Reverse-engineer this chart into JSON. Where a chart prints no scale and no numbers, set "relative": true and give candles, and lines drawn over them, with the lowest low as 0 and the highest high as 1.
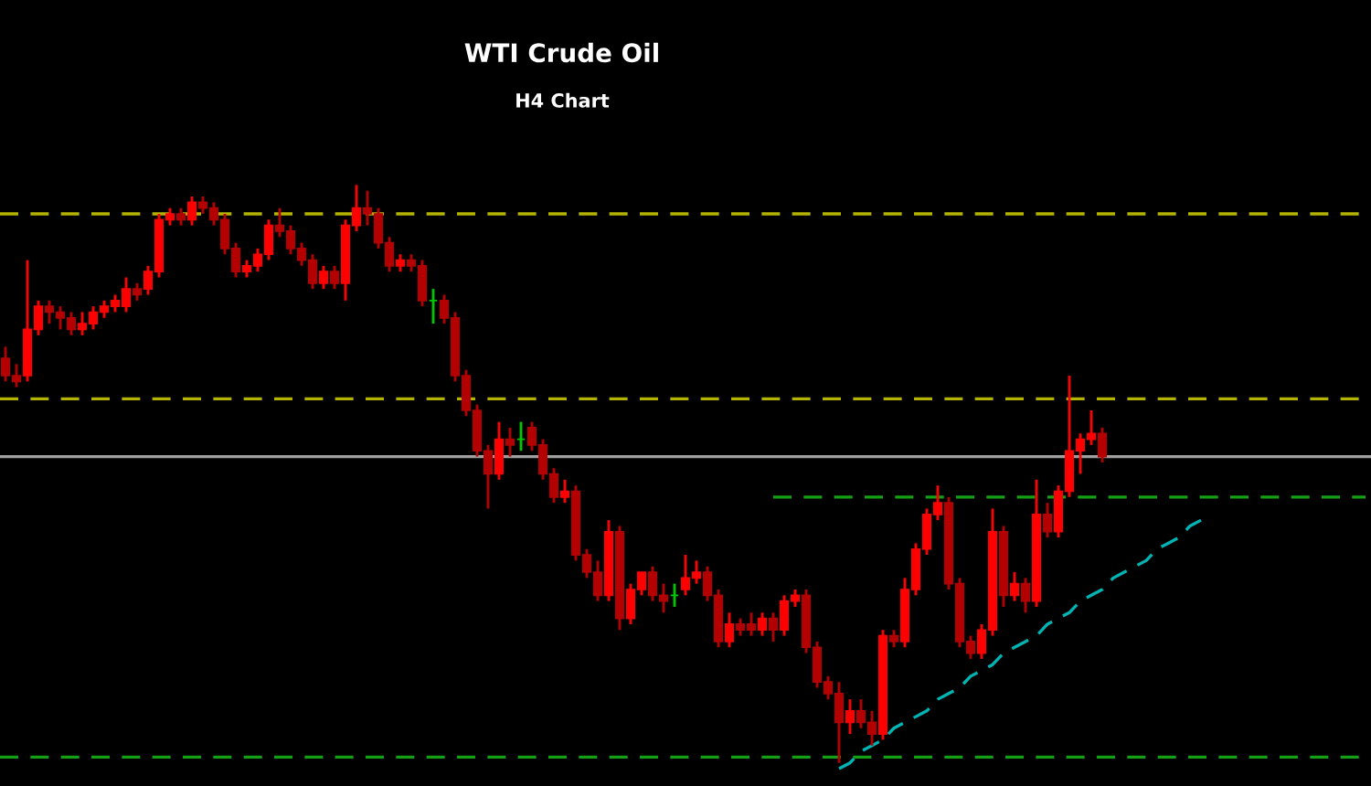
{
  "chart_data": {
    "type": "candlestick",
    "title": "WTI Crude Oil",
    "subtitle": "H4 Chart",
    "relative": true,
    "categories": [
      null,
      null,
      null,
      null,
      null,
      null,
      null,
      null,
      null,
      null,
      null,
      null,
      null,
      null,
      null,
      null,
      null,
      null,
      null,
      null,
      null,
      null,
      null,
      null,
      null,
      null,
      null,
      null,
      null,
      null,
      null,
      null,
      null,
      null,
      null,
      null,
      null,
      null,
      null,
      null,
      null,
      null,
      null,
      null,
      null,
      null,
      null,
      null,
      null,
      null,
      null,
      null,
      null,
      null,
      null,
      null,
      null,
      null,
      null,
      null,
      null,
      null,
      null,
      null,
      null,
      null,
      null,
      null,
      null,
      null,
      null,
      null,
      null,
      null,
      null,
      null,
      null,
      null,
      null,
      null,
      null,
      null,
      null,
      null,
      null,
      null,
      null,
      null,
      null,
      null,
      null,
      null,
      null,
      null,
      null,
      null,
      null,
      null,
      null,
      null,
      null,
      null,
      null,
      null,
      null,
      null,
      null,
      null,
      null,
      null,
      null,
      null,
      null,
      null,
      null,
      null,
      null,
      null,
      null,
      null,
      null,
      null,
      null,
      null,
      null
    ],
    "ohlc": [
      [
        0.7,
        0.72,
        0.66,
        0.67
      ],
      [
        0.67,
        0.69,
        0.65,
        0.66
      ],
      [
        0.67,
        0.87,
        0.66,
        0.75
      ],
      [
        0.75,
        0.8,
        0.74,
        0.79
      ],
      [
        0.79,
        0.8,
        0.76,
        0.78
      ],
      [
        0.78,
        0.79,
        0.75,
        0.77
      ],
      [
        0.77,
        0.78,
        0.74,
        0.75
      ],
      [
        0.75,
        0.78,
        0.74,
        0.76
      ],
      [
        0.76,
        0.79,
        0.75,
        0.78
      ],
      [
        0.78,
        0.8,
        0.77,
        0.79
      ],
      [
        0.79,
        0.81,
        0.78,
        0.8
      ],
      [
        0.79,
        0.84,
        0.78,
        0.82
      ],
      [
        0.82,
        0.83,
        0.8,
        0.81
      ],
      [
        0.82,
        0.86,
        0.81,
        0.85
      ],
      [
        0.85,
        0.95,
        0.84,
        0.94
      ],
      [
        0.94,
        0.96,
        0.93,
        0.95
      ],
      [
        0.95,
        0.96,
        0.93,
        0.94
      ],
      [
        0.94,
        0.98,
        0.93,
        0.97
      ],
      [
        0.97,
        0.98,
        0.95,
        0.96
      ],
      [
        0.96,
        0.97,
        0.93,
        0.94
      ],
      [
        0.94,
        0.95,
        0.88,
        0.89
      ],
      [
        0.89,
        0.9,
        0.84,
        0.85
      ],
      [
        0.85,
        0.87,
        0.84,
        0.86
      ],
      [
        0.86,
        0.89,
        0.85,
        0.88
      ],
      [
        0.88,
        0.94,
        0.87,
        0.93
      ],
      [
        0.93,
        0.96,
        0.91,
        0.92
      ],
      [
        0.92,
        0.93,
        0.88,
        0.89
      ],
      [
        0.89,
        0.9,
        0.86,
        0.87
      ],
      [
        0.87,
        0.88,
        0.82,
        0.83
      ],
      [
        0.83,
        0.86,
        0.82,
        0.85
      ],
      [
        0.85,
        0.86,
        0.82,
        0.83
      ],
      [
        0.83,
        0.94,
        0.8,
        0.93
      ],
      [
        0.93,
        1.0,
        0.92,
        0.96
      ],
      [
        0.96,
        0.99,
        0.93,
        0.95
      ],
      [
        0.95,
        0.96,
        0.89,
        0.9
      ],
      [
        0.9,
        0.91,
        0.85,
        0.86
      ],
      [
        0.86,
        0.88,
        0.85,
        0.87
      ],
      [
        0.87,
        0.88,
        0.85,
        0.86
      ],
      [
        0.86,
        0.87,
        0.79,
        0.8
      ],
      [
        0.8,
        0.82,
        0.76,
        0.8
      ],
      [
        0.8,
        0.81,
        0.76,
        0.77
      ],
      [
        0.77,
        0.78,
        0.66,
        0.67
      ],
      [
        0.67,
        0.68,
        0.6,
        0.61
      ],
      [
        0.61,
        0.62,
        0.53,
        0.54
      ],
      [
        0.54,
        0.55,
        0.44,
        0.5
      ],
      [
        0.5,
        0.59,
        0.49,
        0.56
      ],
      [
        0.56,
        0.58,
        0.53,
        0.55
      ],
      [
        0.56,
        0.59,
        0.54,
        0.56
      ],
      [
        0.58,
        0.59,
        0.54,
        0.55
      ],
      [
        0.55,
        0.56,
        0.49,
        0.5
      ],
      [
        0.5,
        0.51,
        0.45,
        0.46
      ],
      [
        0.46,
        0.49,
        0.45,
        0.47
      ],
      [
        0.47,
        0.48,
        0.35,
        0.36
      ],
      [
        0.36,
        0.37,
        0.32,
        0.33
      ],
      [
        0.33,
        0.35,
        0.28,
        0.29
      ],
      [
        0.29,
        0.42,
        0.28,
        0.4
      ],
      [
        0.4,
        0.41,
        0.23,
        0.25
      ],
      [
        0.25,
        0.31,
        0.24,
        0.3
      ],
      [
        0.3,
        0.33,
        0.29,
        0.33
      ],
      [
        0.33,
        0.34,
        0.28,
        0.29
      ],
      [
        0.29,
        0.31,
        0.26,
        0.28
      ],
      [
        0.29,
        0.31,
        0.27,
        0.29
      ],
      [
        0.3,
        0.36,
        0.29,
        0.32
      ],
      [
        0.32,
        0.35,
        0.31,
        0.33
      ],
      [
        0.33,
        0.34,
        0.28,
        0.29
      ],
      [
        0.29,
        0.3,
        0.2,
        0.21
      ],
      [
        0.21,
        0.26,
        0.2,
        0.24
      ],
      [
        0.24,
        0.25,
        0.22,
        0.23
      ],
      [
        0.24,
        0.26,
        0.22,
        0.23
      ],
      [
        0.23,
        0.26,
        0.22,
        0.25
      ],
      [
        0.25,
        0.26,
        0.21,
        0.23
      ],
      [
        0.23,
        0.29,
        0.22,
        0.28
      ],
      [
        0.28,
        0.3,
        0.27,
        0.29
      ],
      [
        0.29,
        0.3,
        0.19,
        0.2
      ],
      [
        0.2,
        0.21,
        0.13,
        0.14
      ],
      [
        0.14,
        0.15,
        0.11,
        0.12
      ],
      [
        0.12,
        0.14,
        0.0,
        0.07
      ],
      [
        0.07,
        0.11,
        0.05,
        0.09
      ],
      [
        0.09,
        0.11,
        0.06,
        0.07
      ],
      [
        0.07,
        0.09,
        0.03,
        0.05
      ],
      [
        0.05,
        0.23,
        0.04,
        0.22
      ],
      [
        0.22,
        0.23,
        0.2,
        0.21
      ],
      [
        0.21,
        0.32,
        0.2,
        0.3
      ],
      [
        0.3,
        0.38,
        0.29,
        0.37
      ],
      [
        0.37,
        0.44,
        0.36,
        0.43
      ],
      [
        0.43,
        0.48,
        0.42,
        0.45
      ],
      [
        0.45,
        0.46,
        0.3,
        0.31
      ],
      [
        0.31,
        0.32,
        0.2,
        0.21
      ],
      [
        0.21,
        0.22,
        0.18,
        0.19
      ],
      [
        0.19,
        0.24,
        0.18,
        0.23
      ],
      [
        0.23,
        0.44,
        0.22,
        0.4
      ],
      [
        0.4,
        0.41,
        0.27,
        0.29
      ],
      [
        0.29,
        0.33,
        0.28,
        0.31
      ],
      [
        0.31,
        0.32,
        0.26,
        0.28
      ],
      [
        0.28,
        0.49,
        0.27,
        0.43
      ],
      [
        0.43,
        0.45,
        0.39,
        0.4
      ],
      [
        0.4,
        0.48,
        0.39,
        0.47
      ],
      [
        0.47,
        0.67,
        0.46,
        0.54
      ],
      [
        0.54,
        0.57,
        0.5,
        0.56
      ],
      [
        0.56,
        0.61,
        0.55,
        0.57
      ],
      [
        0.57,
        0.58,
        0.52,
        0.53
      ],
      null,
      null,
      null,
      null,
      null,
      null,
      null,
      null,
      null,
      null,
      null,
      null,
      null,
      null,
      null,
      null,
      null,
      null,
      null,
      null,
      null,
      null,
      null,
      null
    ],
    "colors": [
      "#b40000",
      "#b40000",
      "#ff0000",
      "#ff0000",
      "#b40000",
      "#b40000",
      "#b40000",
      "#ff0000",
      "#ff0000",
      "#ff0000",
      "#ff0000",
      "#ff0000",
      "#b40000",
      "#ff0000",
      "#ff0000",
      "#ff0000",
      "#b40000",
      "#ff0000",
      "#b40000",
      "#b40000",
      "#b40000",
      "#b40000",
      "#ff0000",
      "#ff0000",
      "#ff0000",
      "#b40000",
      "#b40000",
      "#b40000",
      "#b40000",
      "#ff0000",
      "#b40000",
      "#ff0000",
      "#ff0000",
      "#b40000",
      "#b40000",
      "#b40000",
      "#ff0000",
      "#b40000",
      "#b40000",
      "#00c800",
      "#b40000",
      "#b40000",
      "#b40000",
      "#b40000",
      "#b40000",
      "#ff0000",
      "#b40000",
      "#00c800",
      "#b40000",
      "#b40000",
      "#b40000",
      "#ff0000",
      "#b40000",
      "#b40000",
      "#b40000",
      "#ff0000",
      "#b40000",
      "#ff0000",
      "#ff0000",
      "#b40000",
      "#b40000",
      "#00c800",
      "#ff0000",
      "#ff0000",
      "#b40000",
      "#b40000",
      "#ff0000",
      "#b40000",
      "#b40000",
      "#ff0000",
      "#b40000",
      "#ff0000",
      "#ff0000",
      "#b40000",
      "#b40000",
      "#b40000",
      "#b40000",
      "#ff0000",
      "#b40000",
      "#b40000",
      "#ff0000",
      "#b40000",
      "#ff0000",
      "#ff0000",
      "#ff0000",
      "#ff0000",
      "#b40000",
      "#b40000",
      "#b40000",
      "#ff0000",
      "#ff0000",
      "#b40000",
      "#ff0000",
      "#b40000",
      "#ff0000",
      "#b40000",
      "#ff0000",
      "#ff0000",
      "#ff0000",
      "#ff0000",
      "#b40000",
      null,
      null,
      null,
      null,
      null,
      null,
      null,
      null,
      null,
      null,
      null,
      null,
      null,
      null,
      null,
      null,
      null,
      null,
      null,
      null,
      null,
      null,
      null,
      null
    ],
    "series": [
      {
        "type": "line",
        "color": "#00b4b4",
        "line_style": "dashed",
        "values": [
          null,
          null,
          null,
          null,
          null,
          null,
          null,
          null,
          null,
          null,
          null,
          null,
          null,
          null,
          null,
          null,
          null,
          null,
          null,
          null,
          null,
          null,
          null,
          null,
          null,
          null,
          null,
          null,
          null,
          null,
          null,
          null,
          null,
          null,
          null,
          null,
          null,
          null,
          null,
          null,
          null,
          null,
          null,
          null,
          null,
          null,
          null,
          null,
          null,
          null,
          null,
          null,
          null,
          null,
          null,
          null,
          null,
          null,
          null,
          null,
          null,
          null,
          null,
          null,
          null,
          null,
          null,
          null,
          null,
          null,
          null,
          null,
          null,
          null,
          null,
          null,
          -0.01,
          0.0,
          0.02,
          0.03,
          0.04,
          0.06,
          0.07,
          0.08,
          0.09,
          0.11,
          0.12,
          0.13,
          0.15,
          0.16,
          0.17,
          0.19,
          0.2,
          0.21,
          0.22,
          0.24,
          0.25,
          0.26,
          0.28,
          0.29,
          0.3,
          0.32,
          0.33,
          0.34,
          0.35,
          0.37,
          0.38,
          0.39,
          0.41,
          0.42,
          null,
          null,
          null,
          null,
          null,
          null,
          null,
          null,
          null,
          null,
          null,
          null,
          null,
          null,
          null
        ]
      },
      {
        "type": "line",
        "color": "#14a014",
        "line_style": "dashed",
        "values": [
          null,
          null,
          null,
          null,
          null,
          null,
          null,
          null,
          null,
          null,
          null,
          null,
          null,
          null,
          null,
          null,
          null,
          null,
          null,
          null,
          null,
          null,
          null,
          null,
          null,
          null,
          null,
          null,
          null,
          null,
          null,
          null,
          null,
          null,
          null,
          null,
          null,
          null,
          null,
          null,
          null,
          null,
          null,
          null,
          null,
          null,
          null,
          null,
          null,
          null,
          null,
          null,
          null,
          null,
          null,
          null,
          null,
          null,
          null,
          null,
          null,
          null,
          null,
          null,
          null,
          null,
          null,
          null,
          null,
          null,
          0.46,
          0.46,
          0.46,
          0.46,
          0.46,
          0.46,
          0.46,
          0.46,
          0.46,
          0.46,
          0.46,
          0.46,
          0.46,
          0.46,
          0.46,
          0.46,
          0.46,
          0.46,
          0.46,
          0.46,
          0.46,
          0.46,
          0.46,
          0.46,
          0.46,
          0.46,
          0.46,
          0.46,
          0.46,
          0.46,
          0.46,
          0.46,
          0.46,
          0.46,
          0.46,
          0.46,
          0.46,
          0.46,
          0.46,
          0.46,
          0.46,
          0.46,
          0.46,
          0.46,
          0.46,
          0.46,
          0.46,
          0.46,
          0.46,
          0.46,
          0.46,
          0.46,
          0.46,
          0.46,
          0.46
        ]
      }
    ],
    "ref_lines": [
      {
        "axis": "y",
        "value": 0.95,
        "color": "#b4b400",
        "line_style": "dashed"
      },
      {
        "axis": "y",
        "value": 0.63,
        "color": "#b4b400",
        "line_style": "dashed"
      },
      {
        "axis": "y",
        "value": 0.53,
        "color": "#a0a0a0",
        "line_style": "solid"
      },
      {
        "axis": "y",
        "value": 0.01,
        "color": "#14a014",
        "line_style": "dashed"
      }
    ]
  }
}
